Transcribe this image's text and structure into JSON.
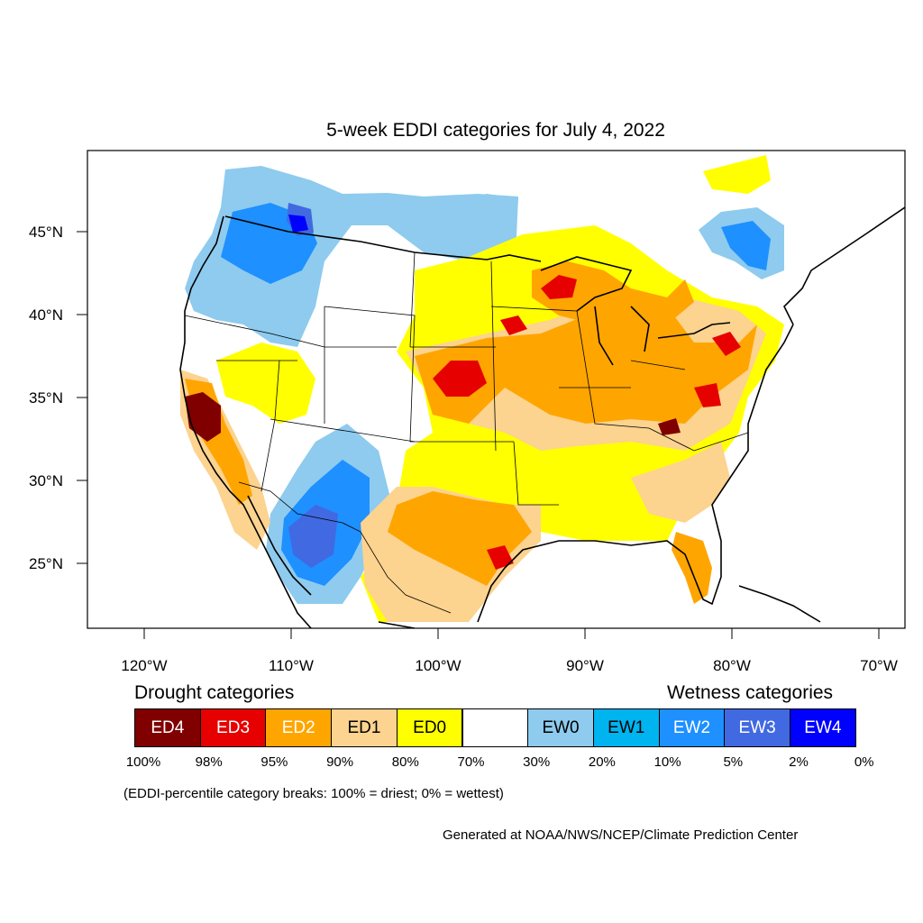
{
  "title": "5-week EDDI categories for July 4, 2022",
  "map": {
    "lat_labels": [
      "45°N",
      "40°N",
      "35°N",
      "30°N",
      "25°N"
    ],
    "lat_values": [
      45,
      40,
      35,
      30,
      25
    ],
    "lon_labels": [
      "120°W",
      "110°W",
      "100°W",
      "90°W",
      "80°W",
      "70°W"
    ],
    "lon_values": [
      -120,
      -110,
      -100,
      -90,
      -80,
      -70
    ]
  },
  "legend": {
    "drought_heading": "Drought categories",
    "wetness_heading": "Wetness categories",
    "categories": [
      {
        "label": "ED4",
        "color": "#800000",
        "text_color": "#ffffff"
      },
      {
        "label": "ED3",
        "color": "#e60000",
        "text_color": "#ffffff"
      },
      {
        "label": "ED2",
        "color": "#ffa500",
        "text_color": "#ffffff"
      },
      {
        "label": "ED1",
        "color": "#fcd38f",
        "text_color": "#000000"
      },
      {
        "label": "ED0",
        "color": "#ffff00",
        "text_color": "#000000"
      },
      {
        "label": "",
        "color": "#ffffff",
        "text_color": "#000000"
      },
      {
        "label": "EW0",
        "color": "#8ecbee",
        "text_color": "#000000"
      },
      {
        "label": "EW1",
        "color": "#00b4f0",
        "text_color": "#000000"
      },
      {
        "label": "EW2",
        "color": "#1e90ff",
        "text_color": "#ffffff"
      },
      {
        "label": "EW3",
        "color": "#4169e1",
        "text_color": "#ffffff"
      },
      {
        "label": "EW4",
        "color": "#0000ff",
        "text_color": "#ffffff"
      }
    ],
    "percentiles": [
      "100%",
      "98%",
      "95%",
      "90%",
      "80%",
      "70%",
      "30%",
      "20%",
      "10%",
      "5%",
      "2%",
      "0%"
    ]
  },
  "note": "(EDDI-percentile category breaks: 100% = driest; 0% = wettest)",
  "credit": "Generated at NOAA/NWS/NCEP/Climate Prediction Center"
}
